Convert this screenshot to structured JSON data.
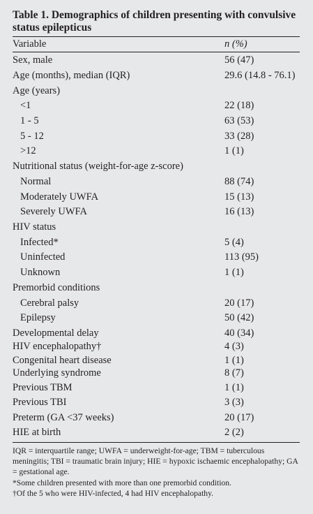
{
  "title": "Table 1. Demographics of children presenting with convulsive status epilepticus",
  "header": {
    "variable": "Variable",
    "value": "n (%)"
  },
  "rows": [
    {
      "label": "Sex, male",
      "value": "56 (47)",
      "indent": false
    },
    {
      "label": "Age (months), median (IQR)",
      "value": "29.6 (14.8 - 76.1)",
      "indent": false
    },
    {
      "label": "Age (years)",
      "value": "",
      "indent": false
    },
    {
      "label": "<1",
      "value": "22 (18)",
      "indent": true
    },
    {
      "label": "1 - 5",
      "value": "63 (53)",
      "indent": true
    },
    {
      "label": "5 - 12",
      "value": "33 (28)",
      "indent": true
    },
    {
      "label": ">12",
      "value": "1 (1)",
      "indent": true
    },
    {
      "label": "Nutritional status (weight-for-age z-score)",
      "value": "",
      "indent": false
    },
    {
      "label": "Normal",
      "value": "88 (74)",
      "indent": true
    },
    {
      "label": "Moderately UWFA",
      "value": "15 (13)",
      "indent": true
    },
    {
      "label": "Severely UWFA",
      "value": "16 (13)",
      "indent": true
    },
    {
      "label": "HIV status",
      "value": "",
      "indent": false
    },
    {
      "label": "Infected*",
      "value": "5 (4)",
      "indent": true
    },
    {
      "label": "Uninfected",
      "value": "113 (95)",
      "indent": true
    },
    {
      "label": "Unknown",
      "value": "1 (1)",
      "indent": true
    },
    {
      "label": "Premorbid conditions",
      "value": "",
      "indent": false
    },
    {
      "label": "Cerebral palsy",
      "value": "20 (17)",
      "indent": true
    },
    {
      "label": "Epilepsy",
      "value": "50 (42)",
      "indent": true
    },
    {
      "label": "Developmental delay",
      "value": "40 (34)",
      "indent": false
    },
    {
      "label": "HIV encephalopathy†",
      "value": "4 (3)",
      "indent": false
    },
    {
      "label": "Congenital heart disease",
      "value": "1 (1)",
      "indent": false
    },
    {
      "label": "Underlying syndrome",
      "value": "8 (7)",
      "indent": false
    },
    {
      "label": "Previous TBM",
      "value": "1 (1)",
      "indent": false
    },
    {
      "label": "Previous TBI",
      "value": "3 (3)",
      "indent": false
    },
    {
      "label": "Preterm (GA <37 weeks)",
      "value": "20 (17)",
      "indent": false
    },
    {
      "label": "HIE at birth",
      "value": "2 (2)",
      "indent": false
    }
  ],
  "footnotes": [
    "IQR = interquartile range; UWFA = underweight-for-age; TBM = tuberculous meningitis; TBI = traumatic brain injury; HIE = hypoxic ischaemic encephalopathy; GA = gestational age.",
    "*Some children presented with more than one premorbid condition.",
    "†Of the 5 who were HIV-infected, 4 had HIV encephalopathy."
  ]
}
